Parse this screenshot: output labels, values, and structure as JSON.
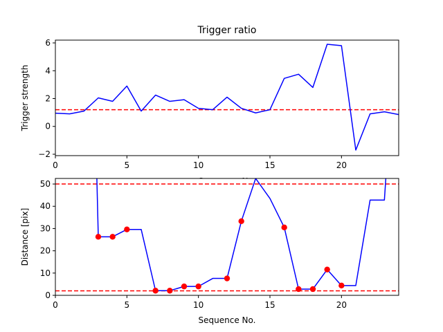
{
  "chart_data": [
    {
      "type": "line",
      "title": "Trigger ratio",
      "xlabel": "Sequence No.",
      "ylabel": "Trigger strength",
      "xlim": [
        0,
        24
      ],
      "ylim": [
        -2.1,
        6.2
      ],
      "x_ticks": [
        0,
        5,
        10,
        15,
        20
      ],
      "y_ticks": [
        -2,
        0,
        2,
        4,
        6
      ],
      "grid": false,
      "x": [
        0,
        1,
        2,
        3,
        4,
        5,
        6,
        7,
        8,
        9,
        10,
        11,
        12,
        13,
        14,
        15,
        16,
        17,
        18,
        19,
        20,
        21,
        22,
        23,
        24
      ],
      "series": [
        {
          "color": "#0000ff",
          "values": [
            0.95,
            0.9,
            1.1,
            2.05,
            1.8,
            2.9,
            1.1,
            2.25,
            1.8,
            1.92,
            1.3,
            1.2,
            2.1,
            1.3,
            0.97,
            1.2,
            3.45,
            3.75,
            2.8,
            5.9,
            5.8,
            -1.7,
            0.9,
            1.05,
            0.85
          ]
        }
      ],
      "hlines": [
        {
          "y": 1.2,
          "color": "#ff0000",
          "style": "dashed"
        }
      ]
    },
    {
      "type": "line",
      "title": "",
      "xlabel": "Sequence No.",
      "ylabel": "Distance [pix]",
      "xlim": [
        0,
        24
      ],
      "ylim": [
        0,
        52.5
      ],
      "x_ticks": [
        0,
        5,
        10,
        15,
        20
      ],
      "y_ticks": [
        0,
        10,
        20,
        30,
        40,
        50
      ],
      "grid": false,
      "x": [
        2.9,
        3,
        4,
        5,
        6,
        7,
        8,
        9,
        10,
        11,
        12,
        13,
        14,
        15,
        16,
        17,
        18,
        19,
        20,
        21,
        22,
        23,
        23.1
      ],
      "series": [
        {
          "color": "#0000ff",
          "values": [
            52.5,
            26.3,
            26.3,
            29.6,
            29.6,
            2.1,
            2.1,
            4.0,
            4.0,
            7.6,
            7.6,
            33.3,
            52.5,
            43.5,
            30.5,
            2.8,
            2.8,
            11.6,
            4.4,
            4.4,
            42.8,
            42.8,
            52.5
          ]
        }
      ],
      "markers": {
        "color": "#ff0000",
        "x": [
          3,
          4,
          5,
          7,
          8,
          9,
          10,
          12,
          13,
          16,
          17,
          18,
          19,
          20
        ],
        "y": [
          26.3,
          26.3,
          29.6,
          2.1,
          2.1,
          4.0,
          4.0,
          7.6,
          33.3,
          30.5,
          2.8,
          2.8,
          11.6,
          4.4
        ]
      },
      "hlines": [
        {
          "y": 50,
          "color": "#ff0000",
          "style": "dashed"
        },
        {
          "y": 2,
          "color": "#ff0000",
          "style": "dashed"
        }
      ]
    }
  ]
}
